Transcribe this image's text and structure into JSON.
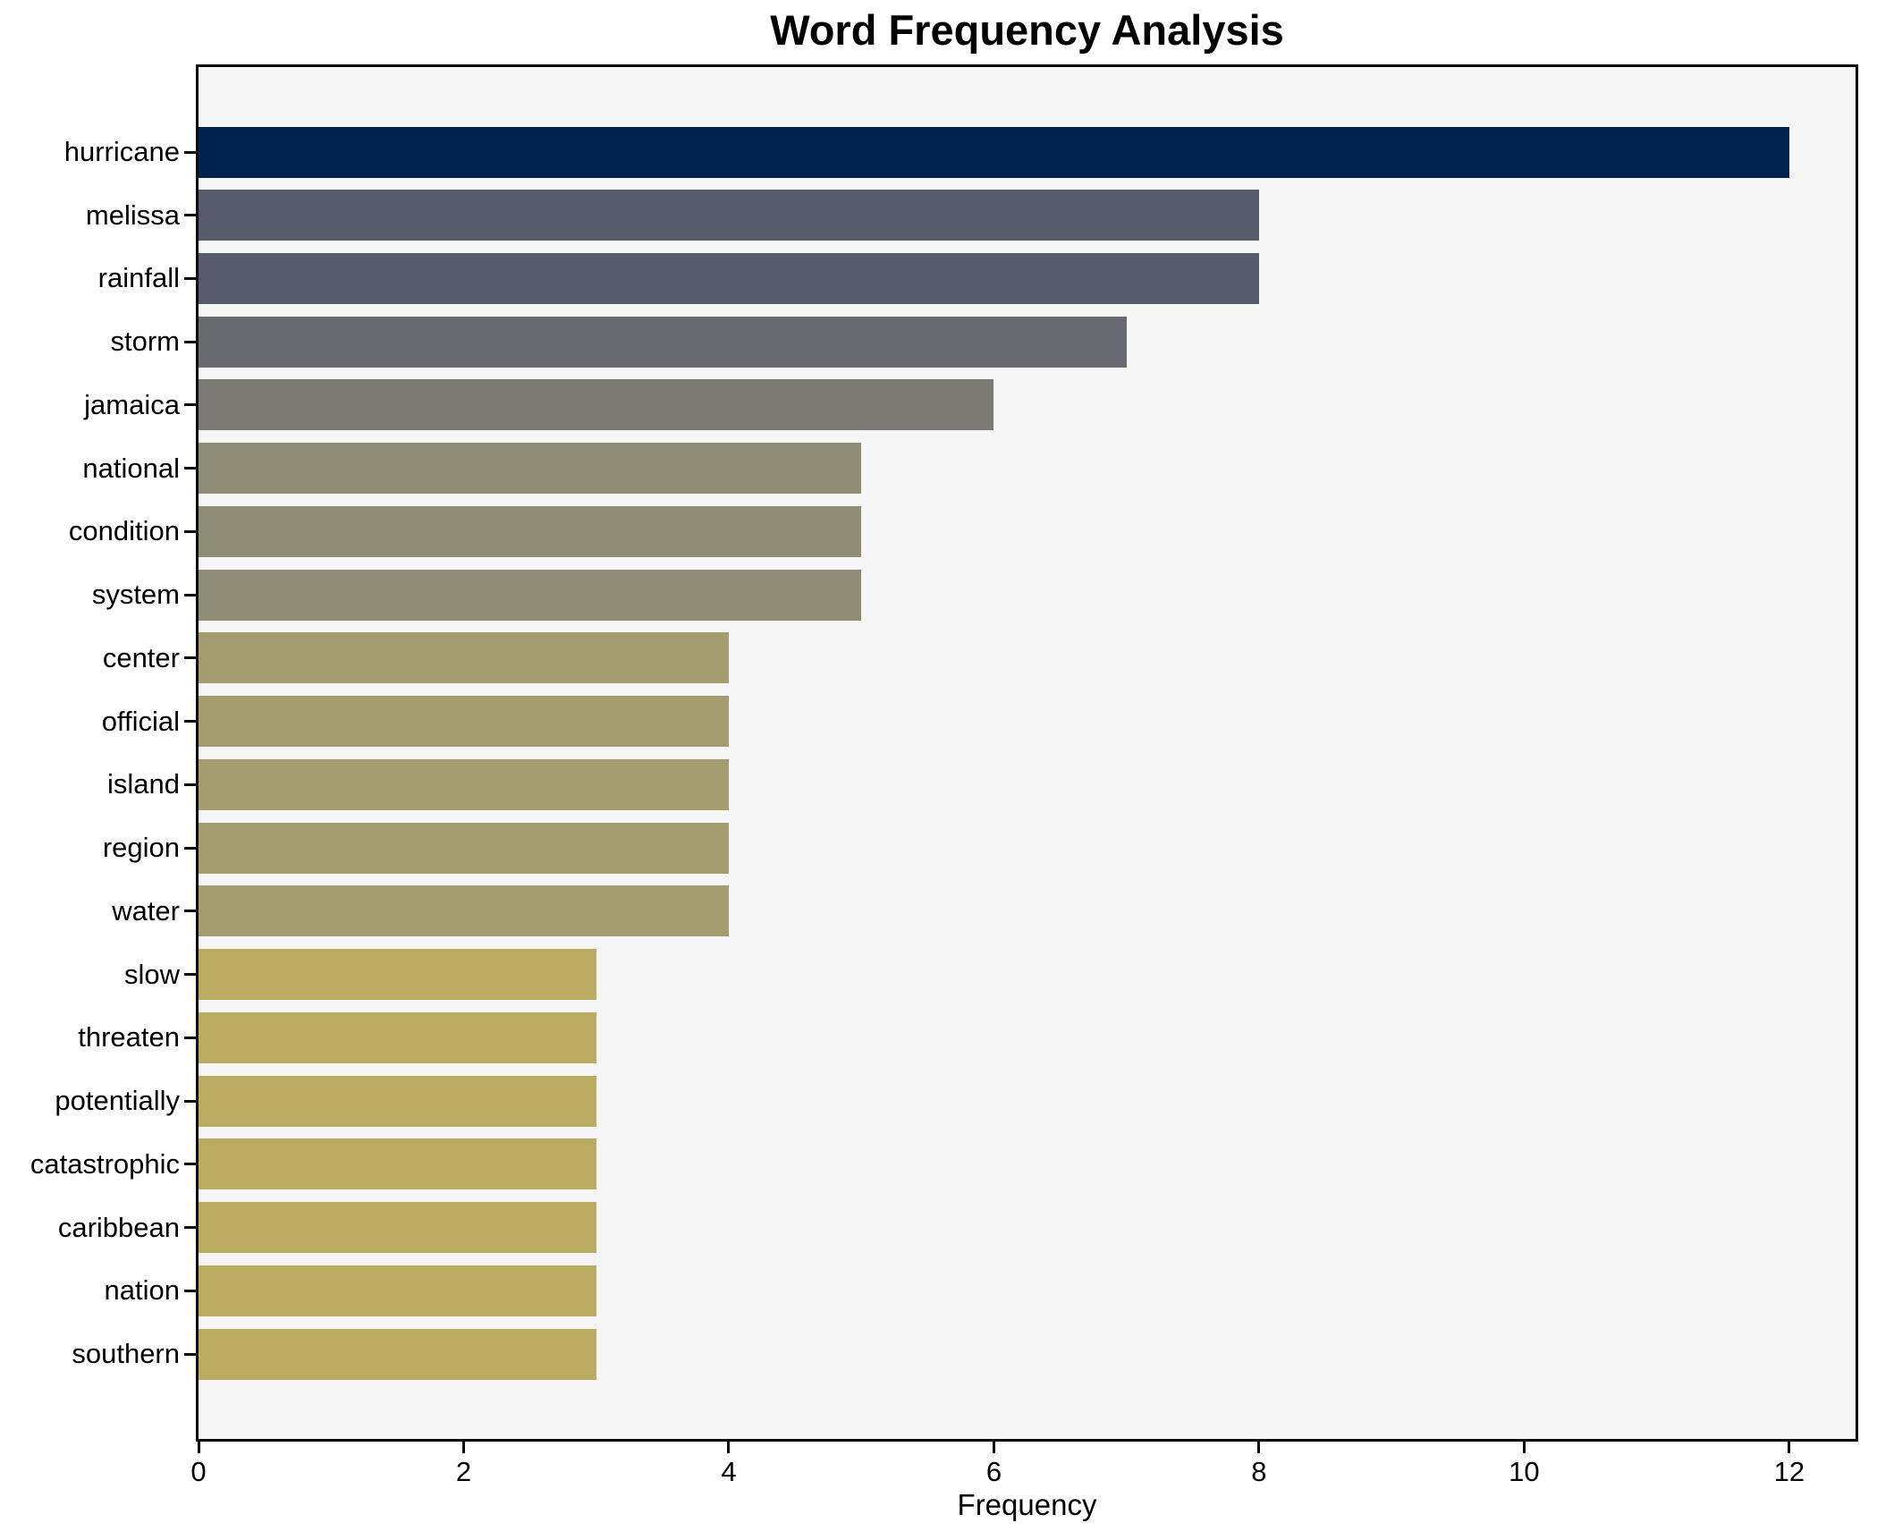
{
  "title": "Word Frequency Analysis",
  "chart_data": {
    "type": "bar",
    "orientation": "horizontal",
    "title": "Word Frequency Analysis",
    "xlabel": "Frequency",
    "ylabel": "",
    "categories": [
      "hurricane",
      "melissa",
      "rainfall",
      "storm",
      "jamaica",
      "national",
      "condition",
      "system",
      "center",
      "official",
      "island",
      "region",
      "water",
      "slow",
      "threaten",
      "potentially",
      "catastrophic",
      "caribbean",
      "nation",
      "southern"
    ],
    "values": [
      12,
      8,
      8,
      7,
      6,
      5,
      5,
      5,
      4,
      4,
      4,
      4,
      4,
      3,
      3,
      3,
      3,
      3,
      3,
      3
    ],
    "bar_colors": [
      "#00224e",
      "#575c6d",
      "#575c6d",
      "#696a71",
      "#7b7a74",
      "#918c76",
      "#918c76",
      "#918c76",
      "#a59d70",
      "#a59d70",
      "#a59d70",
      "#a59d70",
      "#a59d70",
      "#bcab62",
      "#bcab62",
      "#bcab62",
      "#bcab62",
      "#bcab62",
      "#bcab62",
      "#bcab62"
    ],
    "xticks": [
      0,
      2,
      4,
      6,
      8,
      10,
      12
    ],
    "xlim": [
      0,
      12.5
    ],
    "grid": false,
    "legend": null
  },
  "colors": {
    "figure_bg": "#ffffff",
    "plot_bg": "#f6f6f7",
    "spine": "#0a0a0a",
    "text": "#000000"
  }
}
